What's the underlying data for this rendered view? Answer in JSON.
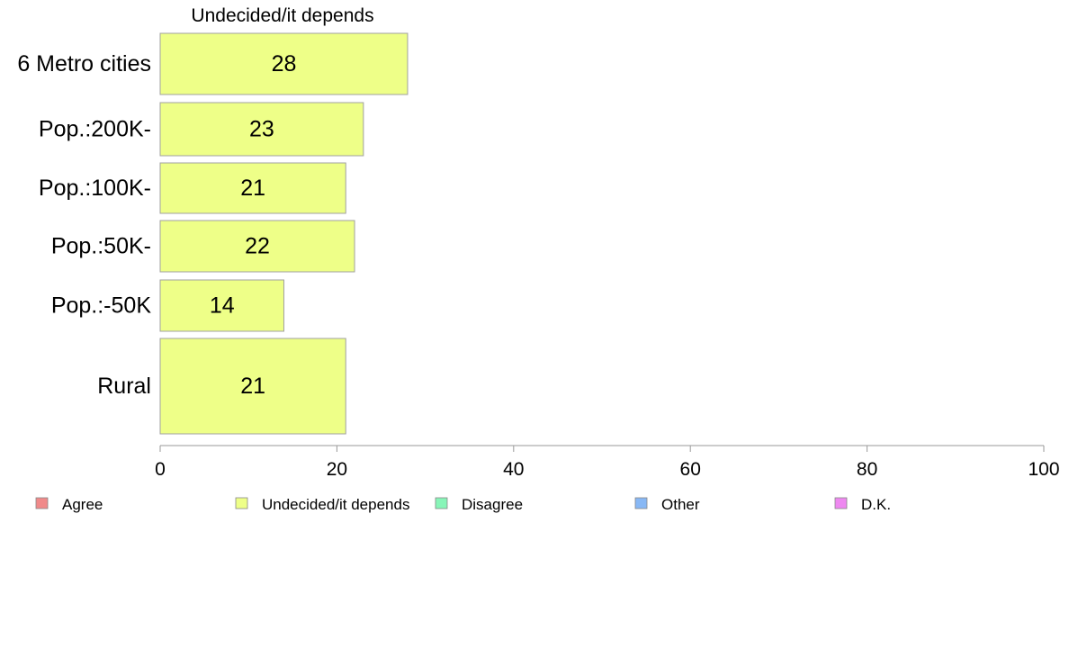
{
  "chart_data": {
    "type": "bar",
    "orientation": "horizontal",
    "title": "Undecided/it depends",
    "categories": [
      "6 Metro cities",
      "Pop.:200K-",
      "Pop.:100K-",
      "Pop.:50K-",
      "Pop.:-50K",
      "Rural"
    ],
    "series": [
      {
        "name": "Undecided/it depends",
        "values": [
          28,
          23,
          21,
          22,
          14,
          21
        ],
        "data_labels": [
          "28",
          "23",
          "21",
          "22",
          "14",
          "21"
        ],
        "color": "#EEFF88"
      }
    ],
    "xlim": [
      0,
      100
    ],
    "x_ticks": [
      0,
      20,
      40,
      60,
      80,
      100
    ],
    "x_tick_labels": [
      "0",
      "20",
      "40",
      "60",
      "80",
      "100"
    ],
    "xlabel": "",
    "ylabel": "",
    "grid": false,
    "legend": {
      "position": "bottom",
      "entries": [
        {
          "label": "Agree",
          "color": "#F08A8A"
        },
        {
          "label": "Undecided/it depends",
          "color": "#EEFF88"
        },
        {
          "label": "Disagree",
          "color": "#88F5B8"
        },
        {
          "label": "Other",
          "color": "#88B8F5"
        },
        {
          "label": "D.K.",
          "color": "#EE88F0"
        }
      ]
    }
  }
}
